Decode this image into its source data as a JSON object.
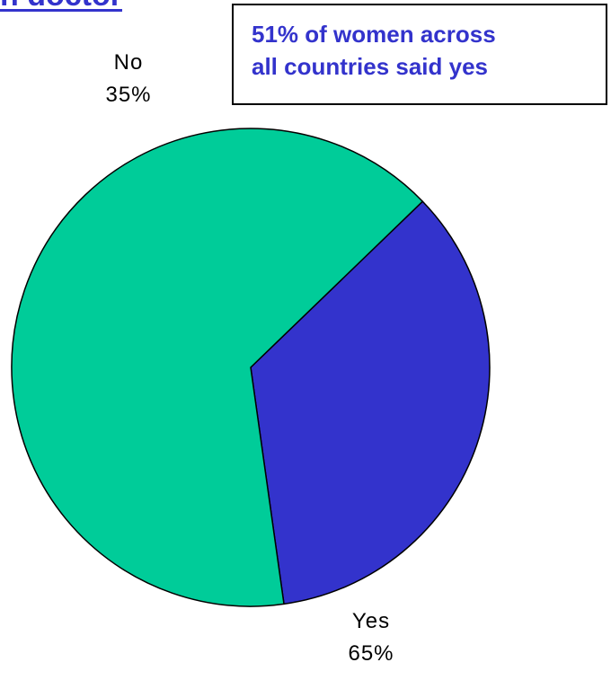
{
  "title_fragment": "n doctor",
  "callout": {
    "line1": "51% of women across",
    "line2": "all countries said yes"
  },
  "colors": {
    "yes": "#00CC99",
    "no": "#3333CC",
    "accent_text": "#3333CC",
    "outline": "#000000"
  },
  "chart_data": {
    "type": "pie",
    "slices": [
      {
        "label": "No",
        "value": 35,
        "percent_label": "35%"
      },
      {
        "label": "Yes",
        "value": 65,
        "percent_label": "65%"
      }
    ],
    "start_angle_deg": 46,
    "annotations": [
      "51% of women across all countries said yes"
    ]
  }
}
